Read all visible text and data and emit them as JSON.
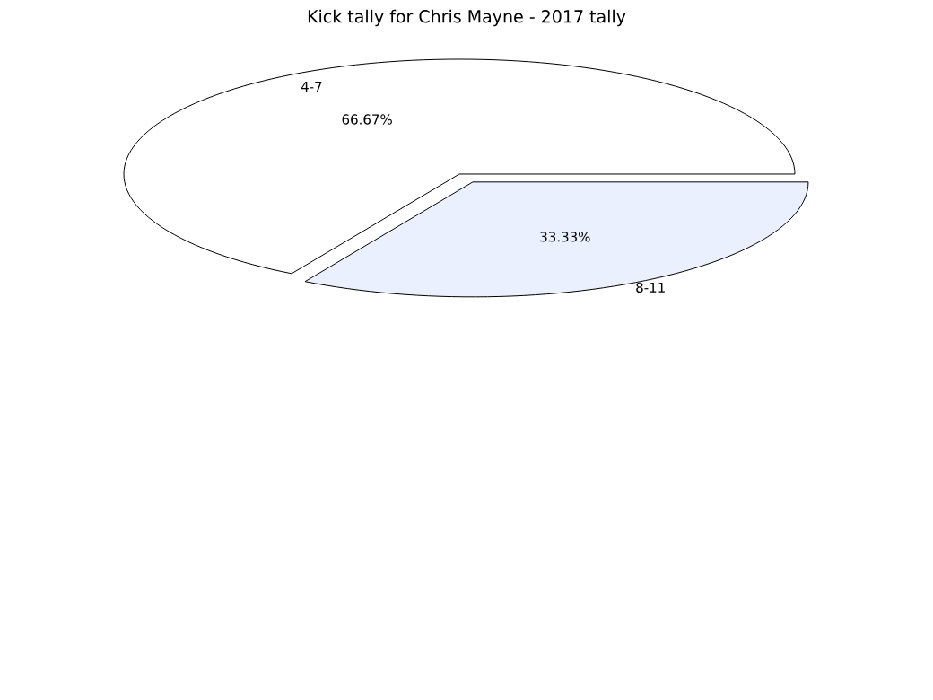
{
  "chart_data": {
    "type": "pie",
    "title": "Kick tally for Chris Mayne - 2017 tally",
    "categories": [
      "4-7",
      "8-11"
    ],
    "values": [
      66.67,
      33.33
    ],
    "value_labels": [
      "66.67%",
      "33.33%"
    ],
    "colors": [
      "#ffffff",
      "#eaf0fd"
    ]
  }
}
